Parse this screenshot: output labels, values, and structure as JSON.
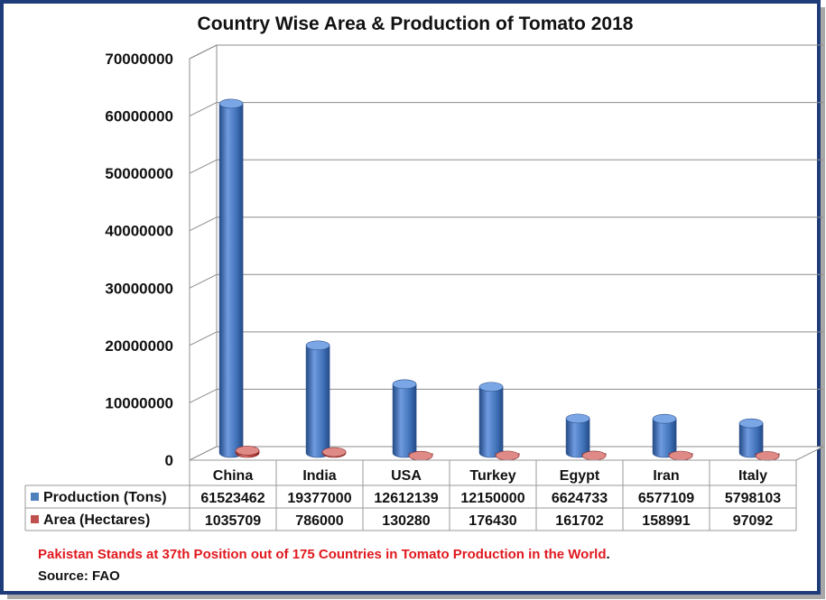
{
  "chart_data": {
    "type": "bar",
    "title": "Country Wise Area & Production of Tomato 2018",
    "categories": [
      "China",
      "India",
      "USA",
      "Turkey",
      "Egypt",
      "Iran",
      "Italy"
    ],
    "series": [
      {
        "name": "Production (Tons)",
        "color": "#4f81bd",
        "values": [
          61523462,
          19377000,
          12612139,
          12150000,
          6624733,
          6577109,
          5798103
        ],
        "labels": [
          "61523462",
          "19377000",
          "12612139",
          "12150000",
          "6624733",
          "6577109",
          "5798103"
        ]
      },
      {
        "name": "Area (Hectares)",
        "color": "#c0504d",
        "values": [
          1035709,
          786000,
          130280,
          176430,
          161702,
          158991,
          97092
        ],
        "labels": [
          "1035709",
          "786000",
          "130280",
          "176430",
          "161702",
          "158991",
          "97092"
        ]
      }
    ],
    "yticks": [
      "0",
      "10000000",
      "20000000",
      "30000000",
      "40000000",
      "50000000",
      "60000000",
      "70000000"
    ],
    "ylim": [
      0,
      70000000
    ],
    "grid": true,
    "legend": "data-table",
    "style": "3d-cylinder"
  },
  "footnote": {
    "text": "Pakistan Stands at 37th Position out of 175 Countries in Tomato Production in the World",
    "end_mark": "."
  },
  "source": "Source: FAO",
  "colors": {
    "frame": "#1f3c7a",
    "grid": "#8c8c8c",
    "note": "#e0191f"
  }
}
